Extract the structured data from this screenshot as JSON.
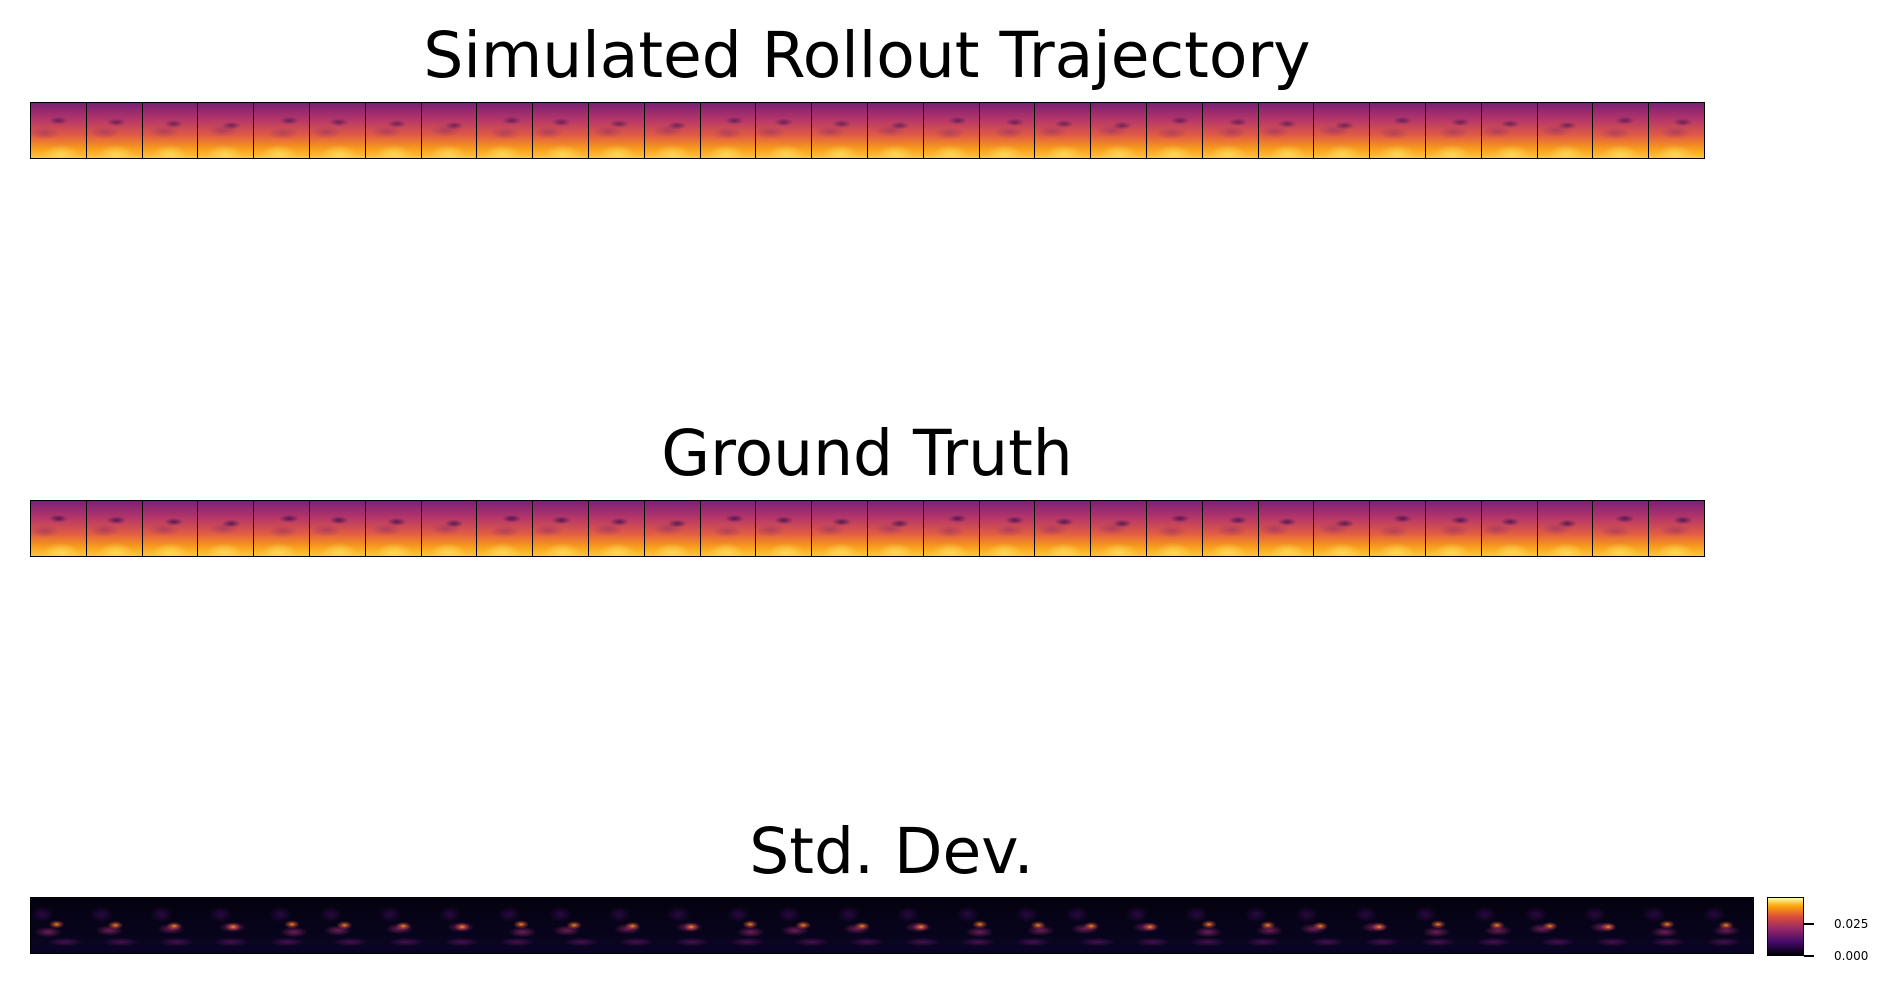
{
  "chart_data": [
    {
      "type": "heatmap",
      "title": "Simulated Rollout Trajectory",
      "n_frames": 30,
      "colormap": "inferno"
    },
    {
      "type": "heatmap",
      "title": "Ground Truth",
      "n_frames": 30,
      "colormap": "inferno"
    },
    {
      "type": "heatmap",
      "title": "Std. Dev.",
      "n_frames": 30,
      "colormap": "inferno",
      "colorbar": {
        "ticks": [
          0.0,
          0.025
        ],
        "tick_labels": [
          "0.000",
          "0.025"
        ]
      }
    }
  ]
}
